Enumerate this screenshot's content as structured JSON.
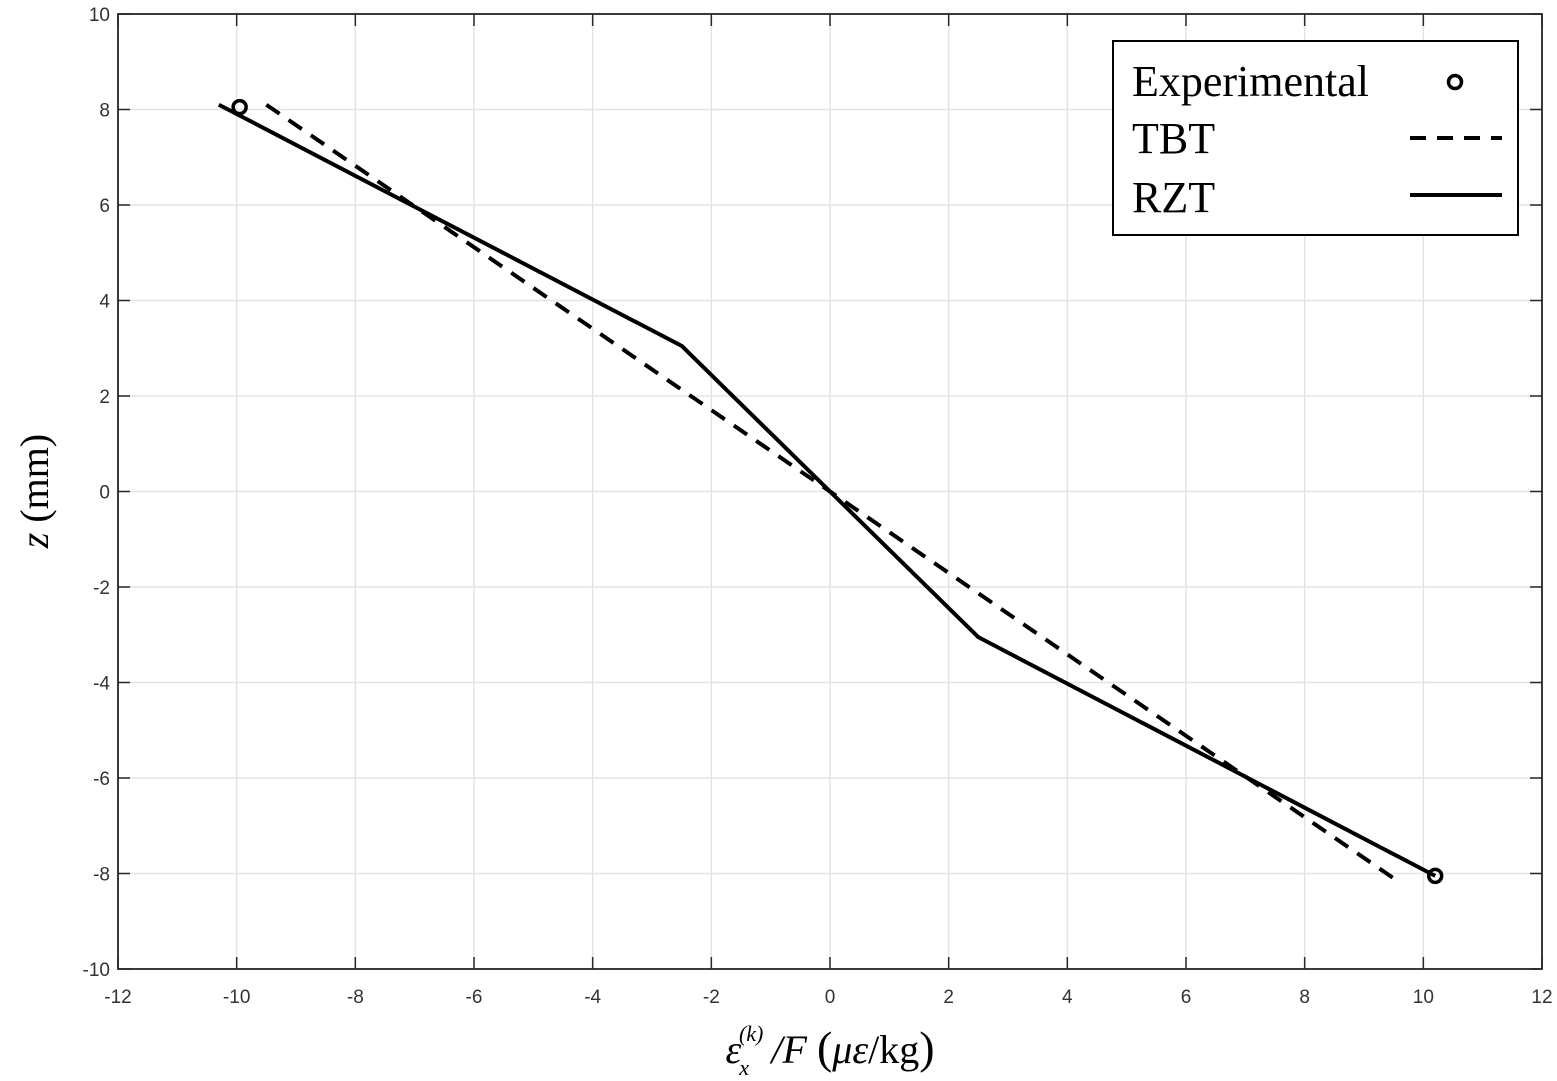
{
  "chart_data": {
    "type": "line",
    "xlabel": "ε_x^(k) / F (με/kg)",
    "xlabel_parts": {
      "eps": "ε",
      "sub": "x",
      "sup": "(k)",
      "slash_f": "/F",
      "open": "(",
      "mu_eps": "με",
      "unit": "/kg",
      "close": ")"
    },
    "ylabel": "z (mm)",
    "ylabel_parts": {
      "var": "z",
      "unit": " (mm)"
    },
    "xlim": [
      -12,
      12
    ],
    "ylim": [
      -10,
      10
    ],
    "xticks": [
      "-12",
      "-10",
      "-8",
      "-6",
      "-4",
      "-2",
      "0",
      "2",
      "4",
      "6",
      "8",
      "10",
      "12"
    ],
    "yticks": [
      "10",
      "8",
      "6",
      "4",
      "2",
      "0",
      "-2",
      "-4",
      "-6",
      "-8",
      "-10"
    ],
    "grid": true,
    "legend_position": "top-right",
    "series": [
      {
        "name": "Experimental",
        "style": "markers-circle",
        "x": [
          -9.95,
          10.2
        ],
        "y": [
          8.05,
          -8.05
        ]
      },
      {
        "name": "TBT",
        "style": "dashed",
        "x": [
          -9.5,
          9.5
        ],
        "y": [
          8.1,
          -8.1
        ]
      },
      {
        "name": "RZT",
        "style": "solid",
        "x": [
          -10.3,
          -2.5,
          2.5,
          10.2
        ],
        "y": [
          8.1,
          3.05,
          -3.05,
          -8.05
        ]
      }
    ],
    "colors": {
      "line": "#000000",
      "grid": "#e3e3e3",
      "axis": "#262626",
      "tick_text": "#333333"
    }
  }
}
